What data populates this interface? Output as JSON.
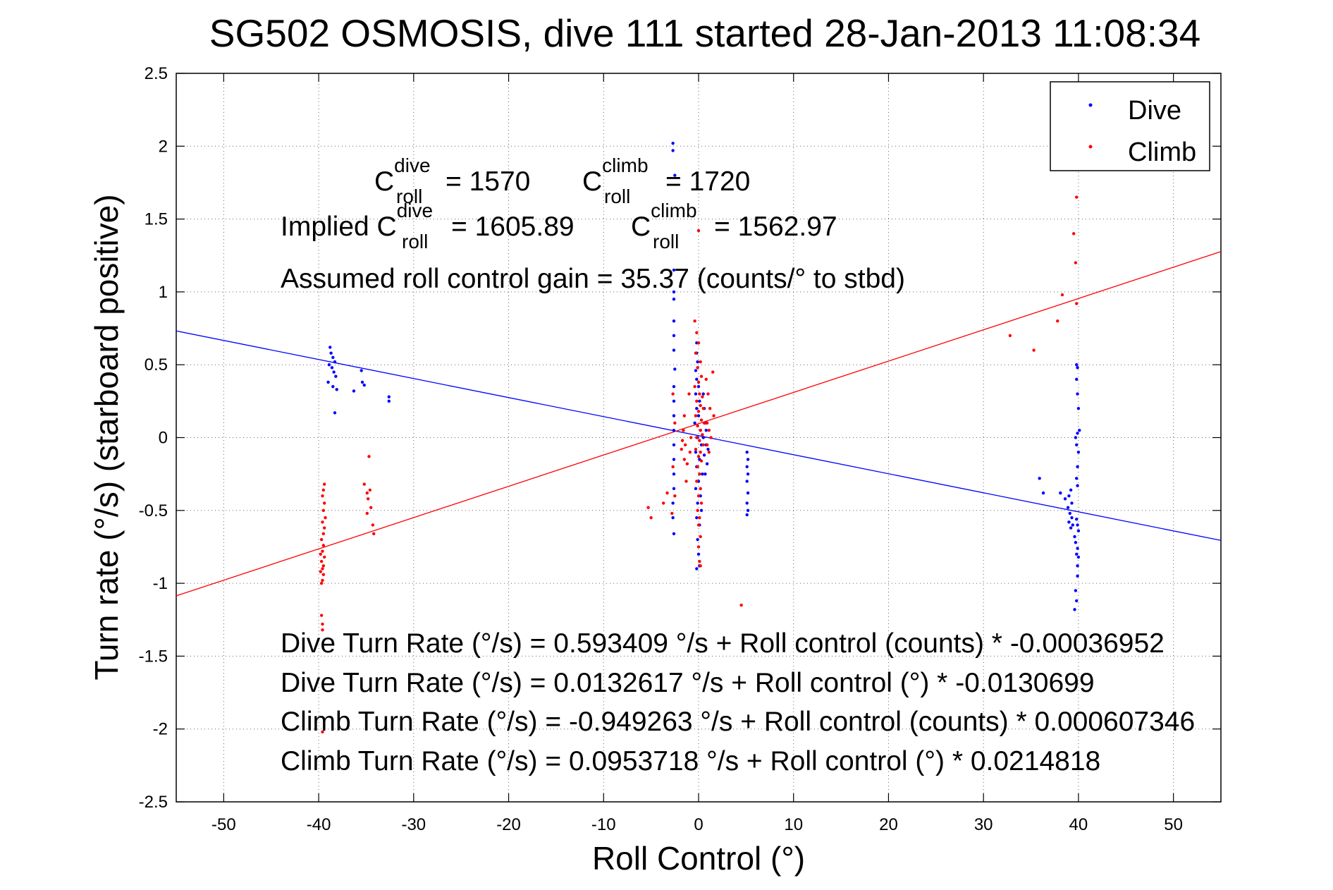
{
  "chart_data": {
    "type": "scatter",
    "title": "SG502 OSMOSIS, dive 111 started 28-Jan-2013 11:08:34",
    "xlabel": "Roll Control (°)",
    "ylabel": "Turn rate (°/s)  (starboard positive)",
    "xlim": [
      -55,
      55
    ],
    "ylim": [
      -2.5,
      2.5
    ],
    "xticks": [
      -50,
      -40,
      -30,
      -20,
      -10,
      0,
      10,
      20,
      30,
      40,
      50
    ],
    "xtick_labels": [
      "-50",
      "-40",
      "-30",
      "-20",
      "-10",
      "0",
      "10",
      "20",
      "30",
      "40",
      "50"
    ],
    "yticks": [
      -2.5,
      -2,
      -1.5,
      -1,
      -0.5,
      0,
      0.5,
      1,
      1.5,
      2,
      2.5
    ],
    "ytick_labels": [
      "-2.5",
      "-2",
      "-1.5",
      "-1",
      "-0.5",
      "0",
      "0.5",
      "1",
      "1.5",
      "2",
      "2.5"
    ],
    "grid": true,
    "legend_position": "top-right",
    "series": [
      {
        "name": "Dive",
        "color": "#0000ff",
        "points": [
          [
            -38.8,
            0.62
          ],
          [
            -38.7,
            0.58
          ],
          [
            -38.5,
            0.55
          ],
          [
            -38.3,
            0.52
          ],
          [
            -38.9,
            0.5
          ],
          [
            -38.6,
            0.48
          ],
          [
            -38.4,
            0.45
          ],
          [
            -38.2,
            0.42
          ],
          [
            -39.0,
            0.38
          ],
          [
            -38.5,
            0.35
          ],
          [
            -38.1,
            0.33
          ],
          [
            -38.3,
            0.17
          ],
          [
            -36.3,
            0.32
          ],
          [
            -35.4,
            0.38
          ],
          [
            -35.2,
            0.36
          ],
          [
            -35.5,
            0.46
          ],
          [
            -32.6,
            0.25
          ],
          [
            -32.6,
            0.28
          ],
          [
            -2.7,
            2.02
          ],
          [
            -2.7,
            1.97
          ],
          [
            -2.5,
            1.8
          ],
          [
            -2.6,
            1.15
          ],
          [
            -2.6,
            1.0
          ],
          [
            -2.6,
            0.95
          ],
          [
            -2.6,
            0.8
          ],
          [
            -2.6,
            0.7
          ],
          [
            -2.6,
            0.6
          ],
          [
            -2.5,
            0.47
          ],
          [
            -2.6,
            0.35
          ],
          [
            -2.6,
            0.25
          ],
          [
            -2.6,
            0.15
          ],
          [
            -2.6,
            0.05
          ],
          [
            -2.6,
            -0.05
          ],
          [
            -2.6,
            -0.15
          ],
          [
            -2.6,
            -0.25
          ],
          [
            -2.6,
            -0.35
          ],
          [
            -2.7,
            -0.45
          ],
          [
            -2.7,
            -0.55
          ],
          [
            -2.6,
            -0.66
          ],
          [
            -0.2,
            0.65
          ],
          [
            -0.2,
            0.58
          ],
          [
            -0.1,
            0.52
          ],
          [
            -0.3,
            0.46
          ],
          [
            -0.2,
            0.4
          ],
          [
            0.0,
            0.35
          ],
          [
            -0.3,
            0.3
          ],
          [
            0.1,
            0.25
          ],
          [
            -0.2,
            0.2
          ],
          [
            0.0,
            0.15
          ],
          [
            -0.4,
            0.1
          ],
          [
            0.2,
            0.05
          ],
          [
            -0.1,
            0.0
          ],
          [
            0.3,
            -0.05
          ],
          [
            -0.3,
            -0.1
          ],
          [
            0.1,
            -0.15
          ],
          [
            -0.2,
            -0.2
          ],
          [
            0.4,
            -0.25
          ],
          [
            0.0,
            -0.3
          ],
          [
            -0.3,
            -0.35
          ],
          [
            0.2,
            -0.4
          ],
          [
            -0.1,
            -0.45
          ],
          [
            0.3,
            -0.5
          ],
          [
            -0.2,
            -0.55
          ],
          [
            0.1,
            -0.6
          ],
          [
            -0.1,
            -0.7
          ],
          [
            0.0,
            -0.8
          ],
          [
            -0.2,
            -0.9
          ],
          [
            0.1,
            -0.88
          ],
          [
            0.5,
            0.3
          ],
          [
            0.6,
            0.2
          ],
          [
            0.7,
            0.1
          ],
          [
            0.5,
            0.0
          ],
          [
            0.8,
            -0.05
          ],
          [
            0.6,
            -0.12
          ],
          [
            0.9,
            -0.18
          ],
          [
            0.7,
            -0.25
          ],
          [
            1.0,
            -0.08
          ],
          [
            0.8,
            0.05
          ],
          [
            5.1,
            -0.1
          ],
          [
            5.2,
            -0.15
          ],
          [
            5.1,
            -0.2
          ],
          [
            5.2,
            -0.25
          ],
          [
            5.1,
            -0.3
          ],
          [
            5.2,
            -0.38
          ],
          [
            5.1,
            -0.45
          ],
          [
            5.2,
            -0.5
          ],
          [
            5.1,
            -0.53
          ],
          [
            35.9,
            -0.28
          ],
          [
            36.3,
            -0.38
          ],
          [
            38.1,
            -0.38
          ],
          [
            38.6,
            -0.42
          ],
          [
            39.0,
            -0.4
          ],
          [
            39.2,
            -0.36
          ],
          [
            39.3,
            -0.45
          ],
          [
            38.9,
            -0.48
          ],
          [
            39.1,
            -0.52
          ],
          [
            39.3,
            -0.55
          ],
          [
            39.0,
            -0.58
          ],
          [
            39.4,
            -0.6
          ],
          [
            39.2,
            -0.62
          ],
          [
            39.8,
            -0.56
          ],
          [
            39.9,
            -0.6
          ],
          [
            40.0,
            -0.64
          ],
          [
            39.6,
            -0.68
          ],
          [
            39.7,
            -0.72
          ],
          [
            39.9,
            -0.76
          ],
          [
            39.8,
            -0.8
          ],
          [
            40.0,
            -0.82
          ],
          [
            39.9,
            -0.88
          ],
          [
            39.9,
            -0.95
          ],
          [
            39.7,
            -1.05
          ],
          [
            39.8,
            -1.12
          ],
          [
            39.6,
            -1.18
          ],
          [
            39.8,
            0.5
          ],
          [
            39.9,
            0.48
          ],
          [
            39.8,
            0.4
          ],
          [
            39.9,
            0.3
          ],
          [
            40.0,
            0.2
          ],
          [
            40.1,
            0.05
          ],
          [
            39.9,
            0.03
          ],
          [
            39.7,
            0.0
          ],
          [
            39.8,
            -0.05
          ],
          [
            40.0,
            -0.1
          ],
          [
            39.9,
            -0.2
          ],
          [
            39.8,
            -0.28
          ],
          [
            39.9,
            -0.33
          ]
        ]
      },
      {
        "name": "Climb",
        "color": "#ff0000",
        "points": [
          [
            -39.4,
            -0.32
          ],
          [
            -39.5,
            -0.36
          ],
          [
            -39.6,
            -0.4
          ],
          [
            -39.4,
            -0.45
          ],
          [
            -39.5,
            -0.5
          ],
          [
            -39.3,
            -0.55
          ],
          [
            -39.6,
            -0.58
          ],
          [
            -39.4,
            -0.62
          ],
          [
            -39.5,
            -0.66
          ],
          [
            -39.7,
            -0.7
          ],
          [
            -39.5,
            -0.74
          ],
          [
            -39.6,
            -0.78
          ],
          [
            -39.8,
            -0.8
          ],
          [
            -39.4,
            -0.82
          ],
          [
            -39.7,
            -0.85
          ],
          [
            -39.5,
            -0.88
          ],
          [
            -39.6,
            -0.9
          ],
          [
            -39.8,
            -0.92
          ],
          [
            -39.5,
            -0.94
          ],
          [
            -39.6,
            -0.98
          ],
          [
            -39.7,
            -1.0
          ],
          [
            -39.7,
            -1.22
          ],
          [
            -39.6,
            -1.28
          ],
          [
            -39.6,
            -1.32
          ],
          [
            -39.6,
            -2.02
          ],
          [
            -34.7,
            -0.13
          ],
          [
            -35.2,
            -0.32
          ],
          [
            -34.9,
            -0.38
          ],
          [
            -34.6,
            -0.36
          ],
          [
            -34.8,
            -0.42
          ],
          [
            -34.5,
            -0.48
          ],
          [
            -34.9,
            -0.52
          ],
          [
            -34.3,
            -0.6
          ],
          [
            -34.2,
            -0.66
          ],
          [
            -2.7,
            0.3
          ],
          [
            -2.5,
            0.1
          ],
          [
            -2.7,
            -0.2
          ],
          [
            -2.5,
            -0.4
          ],
          [
            -2.8,
            -0.52
          ],
          [
            -3.3,
            -0.38
          ],
          [
            -3.7,
            -0.45
          ],
          [
            -5.3,
            -0.48
          ],
          [
            -5.0,
            -0.55
          ],
          [
            -1.5,
            0.15
          ],
          [
            -1.6,
            0.05
          ],
          [
            -1.4,
            -0.05
          ],
          [
            -1.5,
            -0.15
          ],
          [
            -1.3,
            -0.3
          ],
          [
            -1.0,
            0.3
          ],
          [
            -0.8,
            0.0
          ],
          [
            -0.9,
            -0.1
          ],
          [
            -1.2,
            -0.18
          ],
          [
            -1.7,
            -0.02
          ],
          [
            -1.8,
            -0.08
          ],
          [
            -0.4,
            0.8
          ],
          [
            -0.2,
            0.72
          ],
          [
            0.0,
            0.65
          ],
          [
            -0.3,
            0.58
          ],
          [
            0.2,
            0.52
          ],
          [
            -0.1,
            0.48
          ],
          [
            0.3,
            0.42
          ],
          [
            0.0,
            0.38
          ],
          [
            -0.4,
            0.35
          ],
          [
            0.1,
            0.3
          ],
          [
            0.4,
            0.28
          ],
          [
            -0.2,
            0.25
          ],
          [
            0.2,
            0.22
          ],
          [
            0.5,
            0.2
          ],
          [
            0.0,
            0.18
          ],
          [
            -0.3,
            0.15
          ],
          [
            0.3,
            0.12
          ],
          [
            0.6,
            0.1
          ],
          [
            -0.1,
            0.08
          ],
          [
            0.2,
            0.05
          ],
          [
            0.4,
            0.02
          ],
          [
            -0.2,
            0.0
          ],
          [
            0.1,
            -0.02
          ],
          [
            0.5,
            -0.05
          ],
          [
            -0.3,
            -0.08
          ],
          [
            0.2,
            -0.1
          ],
          [
            0.0,
            -0.13
          ],
          [
            0.3,
            -0.16
          ],
          [
            -0.1,
            -0.2
          ],
          [
            0.1,
            -0.25
          ],
          [
            -0.2,
            -0.3
          ],
          [
            0.2,
            -0.35
          ],
          [
            0.0,
            -0.4
          ],
          [
            0.3,
            -0.45
          ],
          [
            -0.1,
            -0.5
          ],
          [
            0.1,
            -0.55
          ],
          [
            0.0,
            -0.6
          ],
          [
            0.2,
            -0.68
          ],
          [
            0.0,
            -0.75
          ],
          [
            0.1,
            -0.85
          ],
          [
            0.2,
            -0.88
          ],
          [
            0.8,
            0.4
          ],
          [
            1.0,
            0.3
          ],
          [
            1.2,
            0.2
          ],
          [
            0.9,
            0.1
          ],
          [
            1.1,
            0.05
          ],
          [
            1.3,
            0.0
          ],
          [
            0.9,
            -0.05
          ],
          [
            1.1,
            -0.1
          ],
          [
            1.5,
            0.45
          ],
          [
            1.6,
            0.15
          ],
          [
            0.0,
            1.42
          ],
          [
            4.5,
            -1.15
          ],
          [
            32.8,
            0.7
          ],
          [
            35.3,
            0.6
          ],
          [
            37.8,
            0.8
          ],
          [
            38.3,
            0.98
          ],
          [
            39.5,
            1.4
          ],
          [
            39.7,
            1.2
          ],
          [
            39.8,
            0.92
          ],
          [
            39.8,
            1.65
          ]
        ]
      }
    ],
    "fit_lines": [
      {
        "series": "Dive",
        "color": "#0000ff",
        "intercept": 0.0132617,
        "slope": -0.0130699
      },
      {
        "series": "Climb",
        "color": "#ff0000",
        "intercept": 0.0953718,
        "slope": 0.0214818
      }
    ],
    "annotations": {
      "c_roll_dive_label": "C",
      "c_roll_dive_sup": "dive",
      "c_roll_dive_sub": "roll",
      "c_roll_dive_value": "= 1570",
      "c_roll_climb_label": "C",
      "c_roll_climb_sup": "climb",
      "c_roll_climb_sub": "roll",
      "c_roll_climb_value": "= 1720",
      "implied_prefix": "Implied C",
      "implied_dive_sup": "dive",
      "implied_dive_sub": "roll",
      "implied_dive_value": "= 1605.89",
      "implied_climb_label": "C",
      "implied_climb_sup": "climb",
      "implied_climb_sub": "roll",
      "implied_climb_value": "= 1562.97",
      "gain": "Assumed roll control gain = 35.37 (counts/° to stbd)",
      "eq1": "Dive Turn Rate (°/s) = 0.593409 °/s + Roll control (counts) * -0.00036952",
      "eq2": "Dive Turn Rate (°/s) = 0.0132617 °/s + Roll control (°) * -0.0130699",
      "eq3": "Climb Turn Rate (°/s) = -0.949263 °/s + Roll control (counts) * 0.000607346",
      "eq4": "Climb Turn Rate (°/s) = 0.0953718 °/s + Roll control (°) * 0.0214818"
    }
  }
}
